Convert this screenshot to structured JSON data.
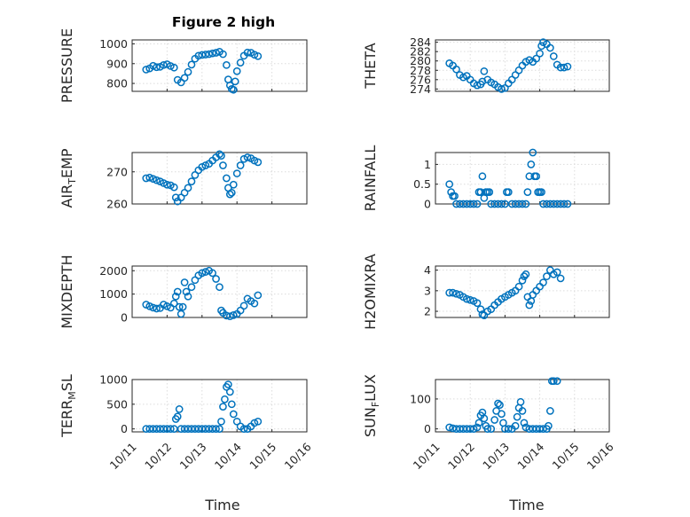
{
  "figure": {
    "title": "Figure 2 high",
    "marker_color": "#0072BD"
  },
  "x_axis": {
    "ticks": [
      {
        "day": 11,
        "label": "10/11"
      },
      {
        "day": 12,
        "label": "10/12"
      },
      {
        "day": 13,
        "label": "10/13"
      },
      {
        "day": 14,
        "label": "10/14"
      },
      {
        "day": 15,
        "label": "10/15"
      },
      {
        "day": 16,
        "label": "10/16"
      }
    ],
    "label": "Time",
    "range": [
      11,
      16
    ]
  },
  "chart_data": [
    {
      "type": "scatter",
      "id": "pressure",
      "ylabel": "PRESSURE",
      "ylim": [
        760,
        1020
      ],
      "yticks": [
        800,
        900,
        1000
      ],
      "grid": true,
      "points": [
        [
          11.4,
          870
        ],
        [
          11.5,
          876
        ],
        [
          11.6,
          889
        ],
        [
          11.7,
          882
        ],
        [
          11.8,
          884
        ],
        [
          11.9,
          893
        ],
        [
          12.0,
          897
        ],
        [
          12.1,
          888
        ],
        [
          12.2,
          880
        ],
        [
          12.3,
          818
        ],
        [
          12.4,
          805
        ],
        [
          12.5,
          828
        ],
        [
          12.6,
          858
        ],
        [
          12.7,
          895
        ],
        [
          12.8,
          925
        ],
        [
          12.9,
          940
        ],
        [
          13.0,
          944
        ],
        [
          13.1,
          946
        ],
        [
          13.2,
          948
        ],
        [
          13.3,
          952
        ],
        [
          13.4,
          955
        ],
        [
          13.5,
          960
        ],
        [
          13.6,
          948
        ],
        [
          13.7,
          893
        ],
        [
          13.75,
          820
        ],
        [
          13.8,
          790
        ],
        [
          13.85,
          772
        ],
        [
          13.9,
          768
        ],
        [
          13.95,
          810
        ],
        [
          14.0,
          862
        ],
        [
          14.1,
          905
        ],
        [
          14.2,
          940
        ],
        [
          14.3,
          956
        ],
        [
          14.4,
          955
        ],
        [
          14.5,
          945
        ],
        [
          14.6,
          938
        ]
      ]
    },
    {
      "type": "scatter",
      "id": "theta",
      "ylabel": "THETA",
      "ylim": [
        273.5,
        284.5
      ],
      "yticks": [
        274,
        276,
        278,
        280,
        282,
        284
      ],
      "grid": true,
      "points": [
        [
          11.4,
          279.5
        ],
        [
          11.5,
          279.0
        ],
        [
          11.6,
          278.2
        ],
        [
          11.7,
          277.0
        ],
        [
          11.8,
          276.5
        ],
        [
          11.9,
          276.8
        ],
        [
          12.0,
          276.0
        ],
        [
          12.1,
          275.2
        ],
        [
          12.2,
          274.8
        ],
        [
          12.3,
          275.0
        ],
        [
          12.35,
          275.6
        ],
        [
          12.4,
          277.8
        ],
        [
          12.5,
          276.0
        ],
        [
          12.6,
          275.4
        ],
        [
          12.7,
          275.0
        ],
        [
          12.8,
          274.4
        ],
        [
          12.9,
          274.0
        ],
        [
          13.0,
          274.2
        ],
        [
          13.1,
          275.2
        ],
        [
          13.2,
          276.0
        ],
        [
          13.3,
          277.0
        ],
        [
          13.4,
          278.0
        ],
        [
          13.5,
          279.0
        ],
        [
          13.6,
          279.8
        ],
        [
          13.7,
          280.2
        ],
        [
          13.8,
          279.8
        ],
        [
          13.9,
          280.5
        ],
        [
          14.0,
          281.6
        ],
        [
          14.05,
          283.2
        ],
        [
          14.1,
          284.0
        ],
        [
          14.2,
          283.6
        ],
        [
          14.3,
          282.8
        ],
        [
          14.4,
          281.0
        ],
        [
          14.5,
          279.2
        ],
        [
          14.6,
          278.6
        ],
        [
          14.7,
          278.6
        ],
        [
          14.8,
          278.8
        ]
      ]
    },
    {
      "type": "scatter",
      "id": "air-temp",
      "ylabel": "AIR_TEMP",
      "ylim": [
        260,
        276
      ],
      "yticks": [
        260,
        270
      ],
      "grid": true,
      "points": [
        [
          11.4,
          268.0
        ],
        [
          11.5,
          268.2
        ],
        [
          11.6,
          267.8
        ],
        [
          11.7,
          267.4
        ],
        [
          11.8,
          267.0
        ],
        [
          11.9,
          266.5
        ],
        [
          12.0,
          266.0
        ],
        [
          12.1,
          265.8
        ],
        [
          12.2,
          265.2
        ],
        [
          12.25,
          262.0
        ],
        [
          12.3,
          260.8
        ],
        [
          12.4,
          262.0
        ],
        [
          12.5,
          263.5
        ],
        [
          12.6,
          265.0
        ],
        [
          12.7,
          267.0
        ],
        [
          12.8,
          269.0
        ],
        [
          12.9,
          270.5
        ],
        [
          13.0,
          271.5
        ],
        [
          13.1,
          272.0
        ],
        [
          13.2,
          272.5
        ],
        [
          13.3,
          273.5
        ],
        [
          13.4,
          274.5
        ],
        [
          13.5,
          275.5
        ],
        [
          13.55,
          275.0
        ],
        [
          13.6,
          272.0
        ],
        [
          13.7,
          268.0
        ],
        [
          13.75,
          265.0
        ],
        [
          13.8,
          263.0
        ],
        [
          13.85,
          263.5
        ],
        [
          13.9,
          266.0
        ],
        [
          14.0,
          269.5
        ],
        [
          14.1,
          272.0
        ],
        [
          14.2,
          274.0
        ],
        [
          14.3,
          274.5
        ],
        [
          14.4,
          274.2
        ],
        [
          14.5,
          273.5
        ],
        [
          14.6,
          273.0
        ]
      ]
    },
    {
      "type": "scatter",
      "id": "rainfall",
      "ylabel": "RAINFALL",
      "ylim": [
        0,
        1.3
      ],
      "yticks": [
        0,
        0.5,
        1
      ],
      "grid": true,
      "points": [
        [
          11.4,
          0.5
        ],
        [
          11.45,
          0.3
        ],
        [
          11.5,
          0.2
        ],
        [
          11.55,
          0.2
        ],
        [
          11.6,
          0
        ],
        [
          11.7,
          0
        ],
        [
          11.8,
          0
        ],
        [
          11.9,
          0
        ],
        [
          12.0,
          0
        ],
        [
          12.1,
          0
        ],
        [
          12.2,
          0
        ],
        [
          12.25,
          0.3
        ],
        [
          12.3,
          0.3
        ],
        [
          12.35,
          0.7
        ],
        [
          12.4,
          0.15
        ],
        [
          12.45,
          0.3
        ],
        [
          12.5,
          0.3
        ],
        [
          12.55,
          0.3
        ],
        [
          12.6,
          0
        ],
        [
          12.7,
          0
        ],
        [
          12.8,
          0
        ],
        [
          12.9,
          0
        ],
        [
          13.0,
          0
        ],
        [
          13.05,
          0.3
        ],
        [
          13.1,
          0.3
        ],
        [
          13.2,
          0
        ],
        [
          13.3,
          0
        ],
        [
          13.4,
          0
        ],
        [
          13.5,
          0
        ],
        [
          13.6,
          0
        ],
        [
          13.65,
          0.3
        ],
        [
          13.7,
          0.7
        ],
        [
          13.75,
          1.0
        ],
        [
          13.8,
          1.3
        ],
        [
          13.85,
          0.7
        ],
        [
          13.9,
          0.7
        ],
        [
          13.95,
          0.3
        ],
        [
          14.0,
          0.3
        ],
        [
          14.05,
          0.3
        ],
        [
          14.1,
          0
        ],
        [
          14.2,
          0
        ],
        [
          14.3,
          0
        ],
        [
          14.4,
          0
        ],
        [
          14.5,
          0
        ],
        [
          14.6,
          0
        ],
        [
          14.7,
          0
        ],
        [
          14.8,
          0
        ]
      ]
    },
    {
      "type": "scatter",
      "id": "mixdepth",
      "ylabel": "MIXDEPTH",
      "ylim": [
        0,
        2200
      ],
      "yticks": [
        0,
        1000,
        2000
      ],
      "grid": true,
      "points": [
        [
          11.4,
          550
        ],
        [
          11.5,
          480
        ],
        [
          11.6,
          420
        ],
        [
          11.7,
          380
        ],
        [
          11.8,
          400
        ],
        [
          11.9,
          550
        ],
        [
          12.0,
          480
        ],
        [
          12.1,
          420
        ],
        [
          12.2,
          600
        ],
        [
          12.25,
          900
        ],
        [
          12.3,
          1100
        ],
        [
          12.35,
          450
        ],
        [
          12.4,
          150
        ],
        [
          12.45,
          450
        ],
        [
          12.5,
          1500
        ],
        [
          12.55,
          1100
        ],
        [
          12.6,
          900
        ],
        [
          12.7,
          1300
        ],
        [
          12.8,
          1600
        ],
        [
          12.9,
          1800
        ],
        [
          13.0,
          1900
        ],
        [
          13.1,
          1950
        ],
        [
          13.2,
          2000
        ],
        [
          13.3,
          1900
        ],
        [
          13.4,
          1650
        ],
        [
          13.5,
          1300
        ],
        [
          13.55,
          300
        ],
        [
          13.6,
          200
        ],
        [
          13.7,
          80
        ],
        [
          13.8,
          50
        ],
        [
          13.9,
          100
        ],
        [
          14.0,
          150
        ],
        [
          14.1,
          300
        ],
        [
          14.2,
          500
        ],
        [
          14.3,
          800
        ],
        [
          14.4,
          700
        ],
        [
          14.5,
          600
        ],
        [
          14.6,
          950
        ]
      ]
    },
    {
      "type": "scatter",
      "id": "h2omixra",
      "ylabel": "H2OMIXRA",
      "ylim": [
        1.7,
        4.2
      ],
      "yticks": [
        2,
        3,
        4
      ],
      "grid": true,
      "points": [
        [
          11.4,
          2.9
        ],
        [
          11.5,
          2.9
        ],
        [
          11.6,
          2.85
        ],
        [
          11.7,
          2.8
        ],
        [
          11.8,
          2.7
        ],
        [
          11.9,
          2.6
        ],
        [
          12.0,
          2.55
        ],
        [
          12.1,
          2.5
        ],
        [
          12.2,
          2.4
        ],
        [
          12.3,
          2.1
        ],
        [
          12.35,
          1.85
        ],
        [
          12.4,
          1.8
        ],
        [
          12.5,
          2.0
        ],
        [
          12.6,
          2.1
        ],
        [
          12.7,
          2.3
        ],
        [
          12.8,
          2.45
        ],
        [
          12.9,
          2.6
        ],
        [
          13.0,
          2.7
        ],
        [
          13.1,
          2.8
        ],
        [
          13.2,
          2.9
        ],
        [
          13.3,
          3.0
        ],
        [
          13.4,
          3.2
        ],
        [
          13.5,
          3.5
        ],
        [
          13.55,
          3.7
        ],
        [
          13.6,
          3.8
        ],
        [
          13.65,
          2.7
        ],
        [
          13.7,
          2.3
        ],
        [
          13.75,
          2.5
        ],
        [
          13.8,
          2.8
        ],
        [
          13.9,
          3.0
        ],
        [
          14.0,
          3.2
        ],
        [
          14.1,
          3.4
        ],
        [
          14.2,
          3.7
        ],
        [
          14.3,
          4.0
        ],
        [
          14.4,
          3.8
        ],
        [
          14.5,
          3.9
        ],
        [
          14.6,
          3.6
        ]
      ]
    },
    {
      "type": "scatter",
      "id": "terr-msl",
      "ylabel": "TERR_MSL",
      "ylim": [
        -60,
        1000
      ],
      "yticks": [
        0,
        500,
        1000
      ],
      "grid": true,
      "points": [
        [
          11.4,
          0
        ],
        [
          11.5,
          0
        ],
        [
          11.6,
          0
        ],
        [
          11.7,
          0
        ],
        [
          11.8,
          0
        ],
        [
          11.9,
          0
        ],
        [
          12.0,
          0
        ],
        [
          12.1,
          0
        ],
        [
          12.2,
          0
        ],
        [
          12.25,
          200
        ],
        [
          12.3,
          250
        ],
        [
          12.35,
          400
        ],
        [
          12.4,
          0
        ],
        [
          12.5,
          0
        ],
        [
          12.6,
          0
        ],
        [
          12.7,
          0
        ],
        [
          12.8,
          0
        ],
        [
          12.9,
          0
        ],
        [
          13.0,
          0
        ],
        [
          13.1,
          0
        ],
        [
          13.2,
          0
        ],
        [
          13.3,
          0
        ],
        [
          13.4,
          0
        ],
        [
          13.5,
          0
        ],
        [
          13.55,
          150
        ],
        [
          13.6,
          450
        ],
        [
          13.65,
          600
        ],
        [
          13.7,
          850
        ],
        [
          13.75,
          900
        ],
        [
          13.8,
          750
        ],
        [
          13.85,
          500
        ],
        [
          13.9,
          300
        ],
        [
          14.0,
          150
        ],
        [
          14.1,
          50
        ],
        [
          14.2,
          0
        ],
        [
          14.3,
          0
        ],
        [
          14.4,
          50
        ],
        [
          14.5,
          120
        ],
        [
          14.6,
          150
        ]
      ]
    },
    {
      "type": "scatter",
      "id": "sun-flux",
      "ylabel": "SUN_FLUX",
      "ylim": [
        -10,
        165
      ],
      "yticks": [
        0,
        100
      ],
      "grid": true,
      "points": [
        [
          11.4,
          5
        ],
        [
          11.5,
          2
        ],
        [
          11.6,
          0
        ],
        [
          11.7,
          0
        ],
        [
          11.8,
          0
        ],
        [
          11.9,
          0
        ],
        [
          12.0,
          0
        ],
        [
          12.1,
          0
        ],
        [
          12.2,
          5
        ],
        [
          12.25,
          20
        ],
        [
          12.3,
          45
        ],
        [
          12.35,
          55
        ],
        [
          12.4,
          35
        ],
        [
          12.45,
          10
        ],
        [
          12.5,
          0
        ],
        [
          12.6,
          0
        ],
        [
          12.7,
          30
        ],
        [
          12.75,
          60
        ],
        [
          12.8,
          85
        ],
        [
          12.85,
          80
        ],
        [
          12.9,
          50
        ],
        [
          12.95,
          20
        ],
        [
          13.0,
          0
        ],
        [
          13.1,
          0
        ],
        [
          13.2,
          0
        ],
        [
          13.3,
          10
        ],
        [
          13.35,
          40
        ],
        [
          13.4,
          70
        ],
        [
          13.45,
          90
        ],
        [
          13.5,
          60
        ],
        [
          13.55,
          20
        ],
        [
          13.6,
          5
        ],
        [
          13.7,
          0
        ],
        [
          13.8,
          0
        ],
        [
          13.9,
          0
        ],
        [
          14.0,
          0
        ],
        [
          14.1,
          0
        ],
        [
          14.2,
          0
        ],
        [
          14.25,
          10
        ],
        [
          14.3,
          60
        ],
        [
          14.35,
          160
        ],
        [
          14.4,
          160
        ],
        [
          14.5,
          160
        ]
      ]
    }
  ]
}
